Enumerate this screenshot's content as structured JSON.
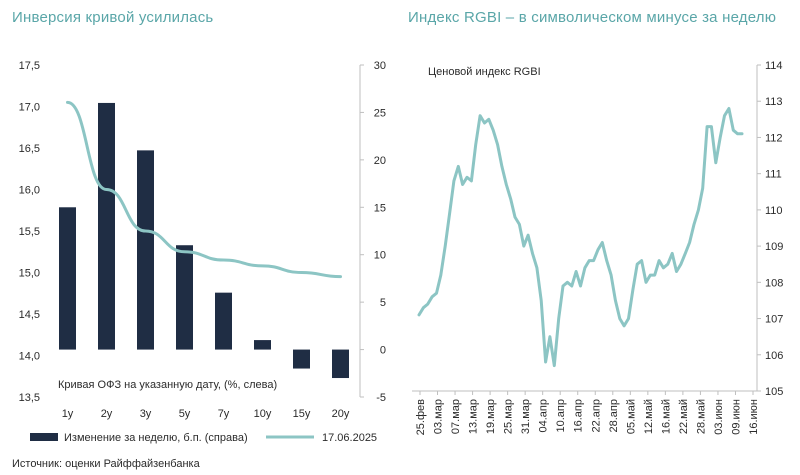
{
  "source": "Источник: оценки Райффайзенбанка",
  "chart_data": [
    {
      "type": "bar+line",
      "title": "Инверсия кривой усилилась",
      "annotation": "Кривая ОФЗ на указанную дату, (%, слева)",
      "categories": [
        "1y",
        "2y",
        "3y",
        "5y",
        "7y",
        "10y",
        "15y",
        "20y"
      ],
      "left_axis": {
        "ticks": [
          "17,5",
          "17,0",
          "16,5",
          "16,0",
          "15,5",
          "15,0",
          "14,5",
          "14,0",
          "13,5"
        ],
        "min": 13.5,
        "max": 17.5
      },
      "right_axis": {
        "ticks": [
          "30",
          "25",
          "20",
          "15",
          "10",
          "5",
          "0",
          "-5"
        ],
        "min": -5,
        "max": 30
      },
      "series": [
        {
          "name": "Изменение за неделю, б.п. (справа)",
          "type": "bar",
          "axis": "right",
          "color": "#1f2d44",
          "values": [
            15.0,
            26.0,
            21.0,
            11.0,
            6.0,
            1.0,
            -2.0,
            -3.0
          ]
        },
        {
          "name": "17.06.2025",
          "type": "line",
          "axis": "left",
          "color": "#8cc5c4",
          "points": [
            [
              0,
              17.05
            ],
            [
              1,
              16.0
            ],
            [
              2,
              15.5
            ],
            [
              3,
              15.25
            ],
            [
              4,
              15.15
            ],
            [
              5,
              15.08
            ],
            [
              6,
              15.0
            ],
            [
              7,
              14.95
            ]
          ]
        }
      ]
    },
    {
      "type": "line",
      "title": "Индекс RGBI – в символическом минусе за неделю",
      "annotation": "Ценовой индекс RGBI",
      "y_axis": {
        "ticks": [
          "114",
          "113",
          "112",
          "111",
          "110",
          "109",
          "108",
          "107",
          "106",
          "105"
        ],
        "min": 105,
        "max": 114
      },
      "x_ticks": [
        "25.фев",
        "03.мар",
        "07.мар",
        "13.мар",
        "19.мар",
        "25.мар",
        "31.мар",
        "04.апр",
        "10.апр",
        "16.апр",
        "22.апр",
        "28.апр",
        "05.май",
        "12.май",
        "16.май",
        "22.май",
        "28.май",
        "03.июн",
        "09.июн",
        "16.июн"
      ],
      "color": "#8cc5c4",
      "series": [
        {
          "values": [
            107.1,
            107.3,
            107.4,
            107.6,
            107.7,
            108.2,
            109.0,
            109.9,
            110.8,
            111.2,
            110.7,
            110.9,
            110.8,
            111.8,
            112.6,
            112.4,
            112.5,
            112.2,
            111.8,
            111.2,
            110.7,
            110.3,
            109.8,
            109.6,
            109.0,
            109.3,
            108.8,
            108.4,
            107.5,
            105.8,
            106.5,
            105.7,
            107.0,
            107.9,
            108.0,
            107.9,
            108.3,
            107.9,
            108.4,
            108.6,
            108.6,
            108.9,
            109.1,
            108.6,
            108.2,
            107.5,
            107.0,
            106.8,
            107.0,
            107.8,
            108.5,
            108.6,
            108.0,
            108.2,
            108.2,
            108.6,
            108.4,
            108.5,
            108.8,
            108.3,
            108.5,
            108.8,
            109.1,
            109.6,
            110.0,
            110.6,
            112.3,
            112.3,
            111.3,
            112.0,
            112.6,
            112.8,
            112.2,
            112.1,
            112.1
          ]
        }
      ]
    }
  ]
}
